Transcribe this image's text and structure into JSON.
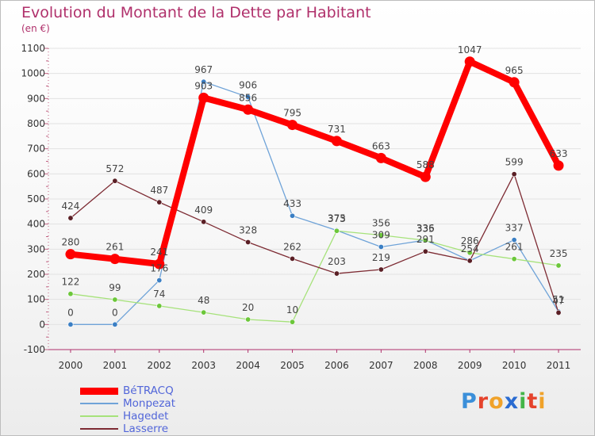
{
  "title": "Evolution du Montant de la Dette par Habitant",
  "subtitle": "(en €)",
  "brand": {
    "letters": [
      "P",
      "r",
      "o",
      "x",
      "i",
      "t",
      "i"
    ],
    "colors": [
      "#3b8fd9",
      "#e5432c",
      "#f0a22a",
      "#2a6bd1",
      "#44b549",
      "#e5432c",
      "#f0a22a"
    ]
  },
  "chart_data": {
    "type": "line",
    "title": "Evolution du Montant de la Dette par Habitant",
    "ylabel": "(en €)",
    "xlabel": "",
    "x": [
      "2000",
      "2001",
      "2002",
      "2003",
      "2004",
      "2005",
      "2006",
      "2007",
      "2008",
      "2009",
      "2010",
      "2011"
    ],
    "ylim": [
      -100,
      1100
    ],
    "yticks": [
      "-100",
      "0",
      "100",
      "200",
      "300",
      "400",
      "500",
      "600",
      "700",
      "800",
      "900",
      "1000",
      "1100"
    ],
    "grid": "horizontal",
    "legend_position": "bottom-left",
    "series": [
      {
        "name": "BéTRACQ",
        "color": "#ff0000",
        "values": [
          280,
          261,
          241,
          903,
          856,
          795,
          731,
          663,
          588,
          1047,
          965,
          633
        ],
        "labels": [
          "280",
          "261",
          "241",
          "903",
          "856",
          "795",
          "731",
          "663",
          "588",
          "1047",
          "965",
          "633"
        ]
      },
      {
        "name": "Monpezat",
        "color": "#6fa3d8",
        "values": [
          0,
          0,
          176,
          967,
          906,
          433,
          375,
          309,
          336,
          254,
          337,
          51
        ],
        "labels": [
          "0",
          "0",
          "176",
          "967",
          "906",
          "433",
          "375",
          "309",
          "336",
          "254",
          "337",
          "51"
        ]
      },
      {
        "name": "Hagedet",
        "color": "#a6e27a",
        "values": [
          122,
          99,
          74,
          48,
          20,
          10,
          373,
          356,
          335,
          286,
          261,
          235
        ],
        "labels": [
          "122",
          "99",
          "74",
          "48",
          "20",
          "10",
          "373",
          "356",
          "335",
          "286",
          "261",
          "235"
        ]
      },
      {
        "name": "Lasserre",
        "color": "#7d2b33",
        "values": [
          424,
          572,
          487,
          409,
          328,
          262,
          203,
          219,
          291,
          254,
          599,
          47
        ],
        "labels": [
          "424",
          "572",
          "487",
          "409",
          "328",
          "262",
          "203",
          "219",
          "291",
          "",
          "599",
          "47"
        ]
      }
    ]
  }
}
